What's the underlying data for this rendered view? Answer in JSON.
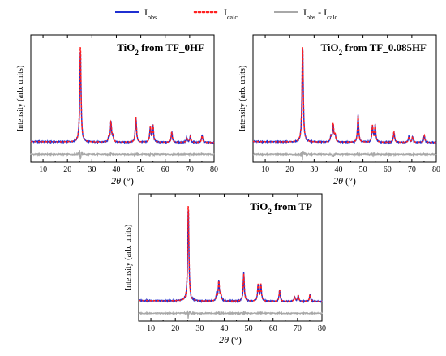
{
  "legend": {
    "items": [
      {
        "main": "I",
        "sub": "obs",
        "color": "#1f2fd1",
        "style": "solid"
      },
      {
        "main": "I",
        "sub": "calc",
        "color": "#ff2020",
        "style": "dotted"
      },
      {
        "main": "I",
        "sub": "obs",
        "mid": " - I",
        "sub2": "calc",
        "color": "#a8a8a8",
        "style": "solid"
      }
    ]
  },
  "colors": {
    "obs": "#1f2fd1",
    "calc": "#ff2020",
    "diff": "#a8a8a8"
  },
  "chart_data": [
    {
      "type": "line",
      "title": "TiO2 from TF_0HF",
      "title_main": "TiO",
      "title_sub": "2",
      "title_rest": " from TF_0HF",
      "xlabel_main": "2θ",
      "xlabel_rest": " (°)",
      "ylabel": "Intensity (arb. units)",
      "xlim": [
        5,
        80
      ],
      "xticks": [
        10,
        20,
        30,
        40,
        50,
        60,
        70,
        80
      ],
      "ylim": [
        -0.2,
        1.1
      ],
      "baseline": 0.0,
      "diff_offset": -0.12,
      "peaks": [
        [
          25.3,
          1.0
        ],
        [
          36.9,
          0.05
        ],
        [
          37.8,
          0.2
        ],
        [
          38.6,
          0.06
        ],
        [
          48.0,
          0.26
        ],
        [
          53.9,
          0.16
        ],
        [
          55.0,
          0.17
        ],
        [
          62.7,
          0.11
        ],
        [
          68.8,
          0.05
        ],
        [
          70.3,
          0.06
        ],
        [
          75.1,
          0.07
        ]
      ],
      "series": [
        {
          "name": "Iobs"
        },
        {
          "name": "Icalc"
        },
        {
          "name": "Iobs - Icalc"
        }
      ]
    },
    {
      "type": "line",
      "title": "TiO2 from TF_0.085HF",
      "title_main": "TiO",
      "title_sub": "2",
      "title_rest": " from TF_0.085HF",
      "xlabel_main": "2θ",
      "xlabel_rest": " (°)",
      "ylabel": "Intensity (arb. units)",
      "xlim": [
        5,
        80
      ],
      "xticks": [
        10,
        20,
        30,
        40,
        50,
        60,
        70,
        80
      ],
      "ylim": [
        -0.2,
        1.1
      ],
      "baseline": 0.0,
      "diff_offset": -0.12,
      "peaks": [
        [
          25.3,
          1.0
        ],
        [
          36.9,
          0.06
        ],
        [
          37.8,
          0.19
        ],
        [
          38.6,
          0.07
        ],
        [
          48.0,
          0.27
        ],
        [
          53.9,
          0.17
        ],
        [
          55.0,
          0.17
        ],
        [
          62.7,
          0.11
        ],
        [
          68.8,
          0.06
        ],
        [
          70.3,
          0.06
        ],
        [
          75.1,
          0.07
        ]
      ],
      "series": [
        {
          "name": "Iobs"
        },
        {
          "name": "Icalc"
        },
        {
          "name": "Iobs - Icalc"
        }
      ]
    },
    {
      "type": "line",
      "title": "TiO2 from TP",
      "title_main": "TiO",
      "title_sub": "2",
      "title_rest": " from TP",
      "xlabel_main": "2θ",
      "xlabel_rest": " (°)",
      "ylabel": "Intensity (arb. units)",
      "xlim": [
        5,
        80
      ],
      "xticks": [
        10,
        20,
        30,
        40,
        50,
        60,
        70,
        80
      ],
      "ylim": [
        -0.2,
        1.1
      ],
      "baseline": 0.0,
      "diff_offset": -0.12,
      "peaks": [
        [
          25.3,
          1.0
        ],
        [
          36.9,
          0.06
        ],
        [
          37.8,
          0.2
        ],
        [
          38.6,
          0.07
        ],
        [
          48.0,
          0.28
        ],
        [
          53.9,
          0.17
        ],
        [
          55.0,
          0.17
        ],
        [
          62.7,
          0.11
        ],
        [
          68.8,
          0.05
        ],
        [
          70.3,
          0.06
        ],
        [
          75.1,
          0.07
        ]
      ],
      "series": [
        {
          "name": "Iobs"
        },
        {
          "name": "Icalc"
        },
        {
          "name": "Iobs - Icalc"
        }
      ]
    }
  ]
}
